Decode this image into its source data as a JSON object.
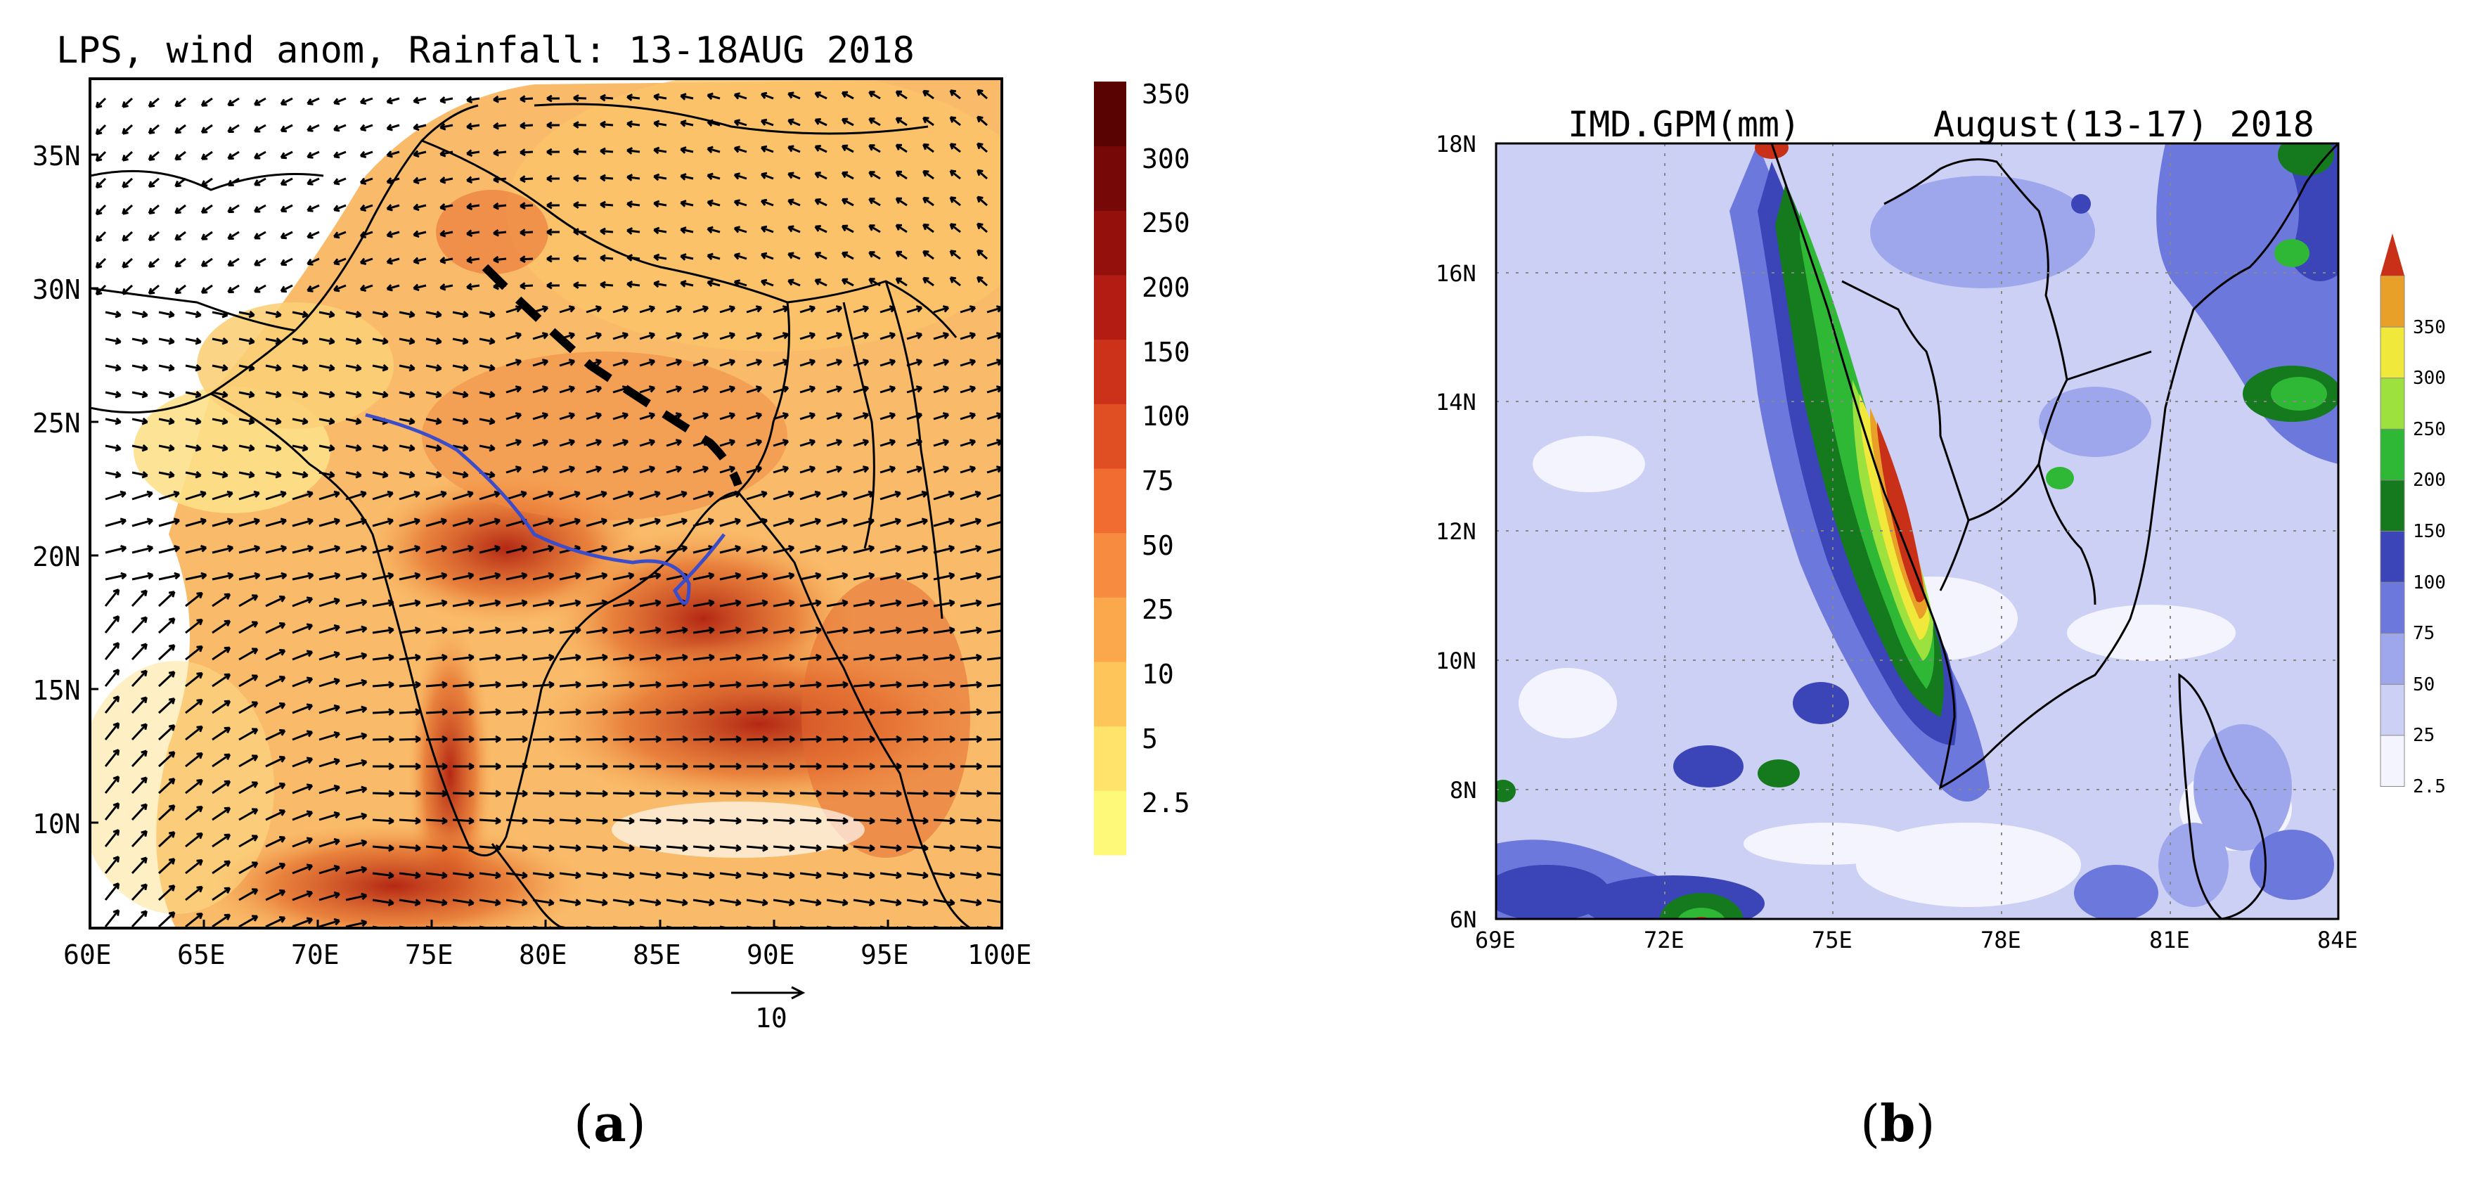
{
  "panel_a": {
    "title": "LPS, wind anom, Rainfall: 13-18AUG 2018",
    "lat_ticks": [
      "35N",
      "30N",
      "25N",
      "20N",
      "15N",
      "10N"
    ],
    "lon_ticks": [
      "60E",
      "65E",
      "70E",
      "75E",
      "80E",
      "85E",
      "90E",
      "95E",
      "100E"
    ],
    "colorbar_labels": [
      "2.5",
      "5",
      "10",
      "25",
      "50",
      "75",
      "100",
      "150",
      "200",
      "250",
      "300",
      "350"
    ],
    "colorbar_colors": [
      "#fff97a",
      "#ffe36a",
      "#fec65a",
      "#fba84c",
      "#f78b40",
      "#f06c30",
      "#e04f24",
      "#cc321a",
      "#b31c12",
      "#94100c",
      "#760807",
      "#5a0303"
    ],
    "reference_vector_label": "10",
    "label_letter": "a"
  },
  "panel_b": {
    "title_left": "IMD.GPM(mm)",
    "title_right": "August(13-17) 2018",
    "lat_ticks": [
      "18N",
      "16N",
      "14N",
      "12N",
      "10N",
      "8N",
      "6N"
    ],
    "lon_ticks": [
      "69E",
      "72E",
      "75E",
      "78E",
      "81E",
      "84E"
    ],
    "colorbar_labels": [
      "2.5",
      "25",
      "50",
      "75",
      "100",
      "150",
      "200",
      "250",
      "300",
      "350"
    ],
    "colorbar_colors": [
      "#f4f4ff",
      "#ccd0f5",
      "#9ea6ec",
      "#6d78dc",
      "#3b45b8",
      "#157a1e",
      "#2fb836",
      "#9ce13e",
      "#f0e83a",
      "#e8a028",
      "#c83018"
    ],
    "label_letter": "b"
  }
}
